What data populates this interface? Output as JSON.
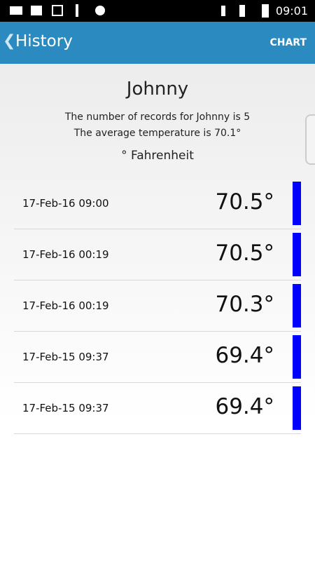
{
  "status_bar": {
    "time": "09:01"
  },
  "header": {
    "title": "History",
    "action": "CHART"
  },
  "summary": {
    "name": "Johnny",
    "records_line": "The number of records for Johnny is 5",
    "average_line": "The average temperature is 70.1°",
    "unit": "° Fahrenheit"
  },
  "records": [
    {
      "date": "17-Feb-16 09:00",
      "temperature": "70.5°"
    },
    {
      "date": "17-Feb-16 00:19",
      "temperature": "70.5°"
    },
    {
      "date": "17-Feb-16 00:19",
      "temperature": "70.3°"
    },
    {
      "date": "17-Feb-15 09:37",
      "temperature": "69.4°"
    },
    {
      "date": "17-Feb-15 09:37",
      "temperature": "69.4°"
    }
  ]
}
